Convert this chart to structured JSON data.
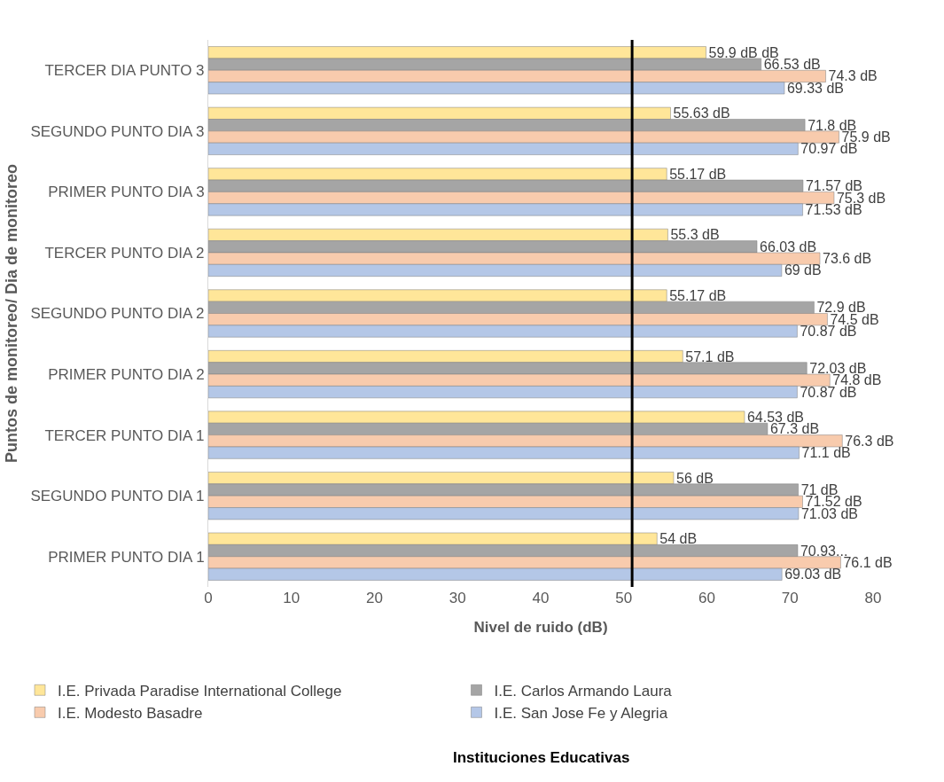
{
  "chart_data": {
    "type": "bar",
    "orientation": "horizontal",
    "xlabel": "Nivel de ruido (dB)",
    "ylabel": "Puntos de monitoreo/ Dia de monitoreo",
    "legend_title": "Instituciones Educativas",
    "legend": "bottom",
    "grid": false,
    "categories": [
      "TERCER DIA PUNTO 3",
      "SEGUNDO PUNTO DIA 3",
      "PRIMER PUNTO DIA 3",
      "TERCER PUNTO DIA 2",
      "SEGUNDO PUNTO DIA 2",
      "PRIMER PUNTO DIA 2",
      "TERCER PUNTO DIA 1",
      "SEGUNDO PUNTO DIA 1",
      "PRIMER PUNTO DIA 1"
    ],
    "xlim": [
      0,
      80
    ],
    "xticks": [
      0,
      10,
      20,
      30,
      40,
      50,
      60,
      70,
      80
    ],
    "ref_lines": [
      {
        "axis": "x",
        "value": 51,
        "color": "#000000"
      }
    ],
    "series": [
      {
        "name": "I.E. Privada Paradise International College",
        "color": "#ffe699",
        "values": [
          59.9,
          55.63,
          55.17,
          55.3,
          55.17,
          57.1,
          64.53,
          56,
          54
        ],
        "value_labels": [
          "59.9 dB dB",
          "55.63 dB",
          "55.17 dB",
          "55.3 dB",
          "55.17 dB",
          "57.1 dB",
          "64.53 dB",
          "56 dB",
          "54 dB"
        ]
      },
      {
        "name": "I.E. Carlos Armando Laura",
        "color": "#a5a5a5",
        "values": [
          66.53,
          71.8,
          71.57,
          66.03,
          72.9,
          72.03,
          67.3,
          71,
          70.93
        ],
        "value_labels": [
          "66.53 dB",
          "71.8 dB",
          "71.57 dB",
          "66.03 dB",
          "72.9 dB",
          "72.03 dB",
          "67.3 dB",
          "71 dB",
          "70.93..."
        ]
      },
      {
        "name": "I.E. Modesto Basadre",
        "color": "#f8cbad",
        "values": [
          74.3,
          75.9,
          75.3,
          73.6,
          74.5,
          74.8,
          76.3,
          71.52,
          76.1
        ],
        "value_labels": [
          "74.3 dB",
          "75.9 dB",
          "75.3 dB",
          "73.6 dB",
          "74.5 dB",
          "74.8 dB",
          "76.3 dB",
          "71.52 dB",
          "76.1 dB"
        ]
      },
      {
        "name": "I.E. San Jose Fe y Alegria",
        "color": "#b4c7e7",
        "values": [
          69.33,
          70.97,
          71.53,
          69,
          70.87,
          70.87,
          71.1,
          71.03,
          69.03
        ],
        "value_labels": [
          "69.33 dB",
          "70.97 dB",
          "71.53 dB",
          "69 dB",
          "70.87 dB",
          "70.87 dB",
          "71.1 dB",
          "71.03 dB",
          "69.03 dB"
        ]
      }
    ]
  }
}
